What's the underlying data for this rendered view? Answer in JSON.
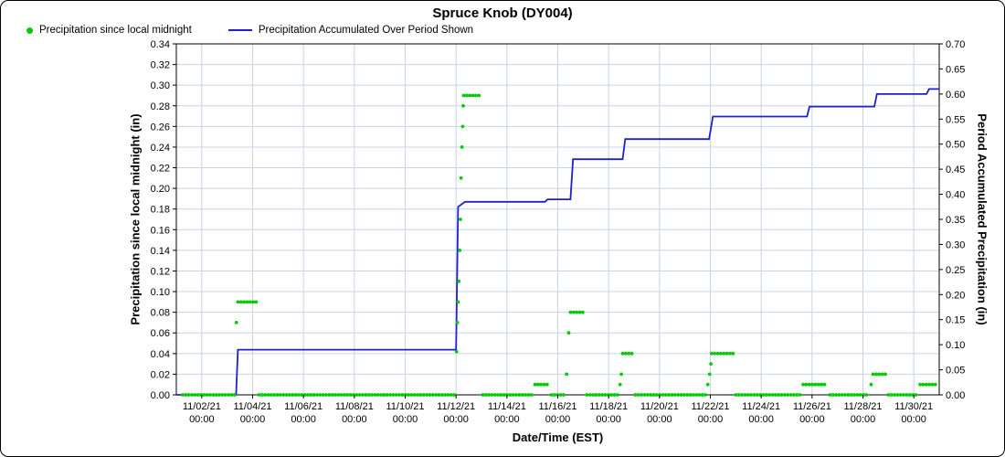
{
  "title": "Spruce Knob (DY004)",
  "legend": {
    "items": [
      {
        "label": "Precipitation since local midnight",
        "marker": "dot",
        "color": "#00CC00"
      },
      {
        "label": "Precipitation Accumulated Over Period Shown",
        "marker": "line",
        "color": "#2020CC"
      }
    ]
  },
  "axes": {
    "x_label": "Date/Time (EST)",
    "y_left_label": "Precipitation since local midnight (in)",
    "y_right_label": "Period Accumulated Precipitation (in)"
  },
  "chart_data": {
    "type": "line",
    "title": "Spruce Knob (DY004)",
    "x_axis": {
      "label": "Date/Time (EST)",
      "unit": "days since 11/01/21 00:00 EST",
      "range_days": [
        0,
        30
      ],
      "ticks": [
        {
          "day": 1,
          "date": "11/02/21",
          "time": "00:00"
        },
        {
          "day": 3,
          "date": "11/04/21",
          "time": "00:00"
        },
        {
          "day": 5,
          "date": "11/06/21",
          "time": "00:00"
        },
        {
          "day": 7,
          "date": "11/08/21",
          "time": "00:00"
        },
        {
          "day": 9,
          "date": "11/10/21",
          "time": "00:00"
        },
        {
          "day": 11,
          "date": "11/12/21",
          "time": "00:00"
        },
        {
          "day": 13,
          "date": "11/14/21",
          "time": "00:00"
        },
        {
          "day": 15,
          "date": "11/16/21",
          "time": "00:00"
        },
        {
          "day": 17,
          "date": "11/18/21",
          "time": "00:00"
        },
        {
          "day": 19,
          "date": "11/20/21",
          "time": "00:00"
        },
        {
          "day": 21,
          "date": "11/22/21",
          "time": "00:00"
        },
        {
          "day": 23,
          "date": "11/24/21",
          "time": "00:00"
        },
        {
          "day": 25,
          "date": "11/26/21",
          "time": "00:00"
        },
        {
          "day": 27,
          "date": "11/28/21",
          "time": "00:00"
        },
        {
          "day": 29,
          "date": "11/30/21",
          "time": "00:00"
        }
      ]
    },
    "y_left": {
      "label": "Precipitation since local midnight (in)",
      "min": 0,
      "max": 0.34,
      "step": 0.02
    },
    "y_right": {
      "label": "Period Accumulated Precipitation (in)",
      "min": 0,
      "max": 0.7,
      "step": 0.05
    },
    "grid": {
      "color": "#C8D4E6",
      "horizontal": true,
      "vertical": true
    },
    "series": [
      {
        "name": "Precipitation Accumulated Over Period Shown",
        "type": "step-line",
        "axis": "right",
        "color": "#2020CC",
        "points_day_value": [
          [
            0,
            0
          ],
          [
            2.35,
            0
          ],
          [
            2.42,
            0.09
          ],
          [
            11.0,
            0.09
          ],
          [
            11.08,
            0.375
          ],
          [
            11.35,
            0.385
          ],
          [
            14.5,
            0.385
          ],
          [
            14.6,
            0.39
          ],
          [
            15.5,
            0.39
          ],
          [
            15.6,
            0.47
          ],
          [
            17.55,
            0.47
          ],
          [
            17.65,
            0.51
          ],
          [
            20.95,
            0.51
          ],
          [
            21.1,
            0.555
          ],
          [
            24.8,
            0.555
          ],
          [
            24.9,
            0.575
          ],
          [
            27.45,
            0.575
          ],
          [
            27.55,
            0.6
          ],
          [
            29.5,
            0.6
          ],
          [
            29.6,
            0.61
          ],
          [
            30,
            0.61
          ]
        ]
      },
      {
        "name": "Precipitation since local midnight",
        "type": "scatter",
        "axis": "left",
        "color": "#00CC00",
        "runs_day_value": [
          {
            "from": 0.25,
            "to": 2.3,
            "value": 0
          },
          {
            "from": 2.42,
            "to": 3.15,
            "value": 0.09
          },
          {
            "from": 3.25,
            "to": 10.95,
            "value": 0
          },
          {
            "from": 11.3,
            "to": 11.95,
            "value": 0.29
          },
          {
            "from": 12.05,
            "to": 14.0,
            "value": 0
          },
          {
            "from": 14.1,
            "to": 14.65,
            "value": 0.01
          },
          {
            "from": 14.75,
            "to": 15.25,
            "value": 0
          },
          {
            "from": 15.5,
            "to": 16.05,
            "value": 0.08
          },
          {
            "from": 16.15,
            "to": 17.4,
            "value": 0
          },
          {
            "from": 17.55,
            "to": 17.95,
            "value": 0.04
          },
          {
            "from": 18.05,
            "to": 20.85,
            "value": 0
          },
          {
            "from": 21.05,
            "to": 21.9,
            "value": 0.04
          },
          {
            "from": 22.0,
            "to": 24.6,
            "value": 0
          },
          {
            "from": 24.65,
            "to": 25.6,
            "value": 0.01
          },
          {
            "from": 25.7,
            "to": 27.25,
            "value": 0
          },
          {
            "from": 27.4,
            "to": 27.9,
            "value": 0.02
          },
          {
            "from": 28.0,
            "to": 29.15,
            "value": 0
          },
          {
            "from": 29.25,
            "to": 29.93,
            "value": 0.01
          }
        ],
        "points_day_value": [
          [
            2.36,
            0.07
          ],
          [
            11.02,
            0.042
          ],
          [
            11.05,
            0.07
          ],
          [
            11.08,
            0.09
          ],
          [
            11.11,
            0.11
          ],
          [
            11.14,
            0.14
          ],
          [
            11.17,
            0.17
          ],
          [
            11.2,
            0.21
          ],
          [
            11.23,
            0.24
          ],
          [
            11.26,
            0.26
          ],
          [
            11.28,
            0.28
          ],
          [
            15.35,
            0.02
          ],
          [
            15.43,
            0.06
          ],
          [
            17.45,
            0.01
          ],
          [
            17.5,
            0.02
          ],
          [
            20.9,
            0.01
          ],
          [
            20.97,
            0.02
          ],
          [
            21.02,
            0.03
          ],
          [
            27.32,
            0.01
          ]
        ]
      }
    ]
  }
}
